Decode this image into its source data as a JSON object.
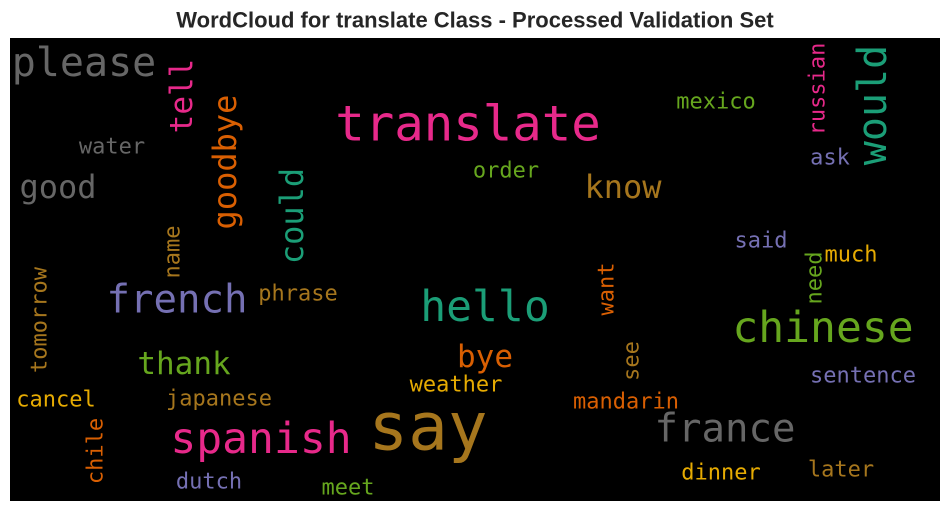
{
  "chart_data": {
    "type": "wordcloud",
    "title": "WordCloud for translate Class - Processed Validation Set",
    "background": "#000000",
    "words": [
      {
        "text": "please",
        "color": "#666666"
      },
      {
        "text": "translate",
        "color": "#e7298a"
      },
      {
        "text": "would",
        "color": "#1b9e77"
      },
      {
        "text": "tell",
        "color": "#e7298a"
      },
      {
        "text": "goodbye",
        "color": "#d95f02"
      },
      {
        "text": "mexico",
        "color": "#66a61e"
      },
      {
        "text": "russian",
        "color": "#e7298a"
      },
      {
        "text": "water",
        "color": "#666666"
      },
      {
        "text": "good",
        "color": "#666666"
      },
      {
        "text": "could",
        "color": "#1b9e77"
      },
      {
        "text": "order",
        "color": "#66a61e"
      },
      {
        "text": "know",
        "color": "#a6761d"
      },
      {
        "text": "ask",
        "color": "#7570b3"
      },
      {
        "text": "said",
        "color": "#7570b3"
      },
      {
        "text": "much",
        "color": "#e6ab02"
      },
      {
        "text": "need",
        "color": "#66a61e"
      },
      {
        "text": "name",
        "color": "#a6761d"
      },
      {
        "text": "tomorrow",
        "color": "#a6761d"
      },
      {
        "text": "french",
        "color": "#7570b3"
      },
      {
        "text": "phrase",
        "color": "#a6761d"
      },
      {
        "text": "hello",
        "color": "#1b9e77"
      },
      {
        "text": "want",
        "color": "#d95f02"
      },
      {
        "text": "chinese",
        "color": "#66a61e"
      },
      {
        "text": "thank",
        "color": "#66a61e"
      },
      {
        "text": "bye",
        "color": "#d95f02"
      },
      {
        "text": "see",
        "color": "#a6761d"
      },
      {
        "text": "weather",
        "color": "#e6ab02"
      },
      {
        "text": "sentence",
        "color": "#7570b3"
      },
      {
        "text": "cancel",
        "color": "#e6ab02"
      },
      {
        "text": "japanese",
        "color": "#a6761d"
      },
      {
        "text": "mandarin",
        "color": "#d95f02"
      },
      {
        "text": "say",
        "color": "#a6761d"
      },
      {
        "text": "spanish",
        "color": "#e7298a"
      },
      {
        "text": "france",
        "color": "#666666"
      },
      {
        "text": "chile",
        "color": "#d95f02"
      },
      {
        "text": "dinner",
        "color": "#e6ab02"
      },
      {
        "text": "later",
        "color": "#a6761d"
      },
      {
        "text": "dutch",
        "color": "#7570b3"
      },
      {
        "text": "meet",
        "color": "#66a61e"
      }
    ]
  }
}
